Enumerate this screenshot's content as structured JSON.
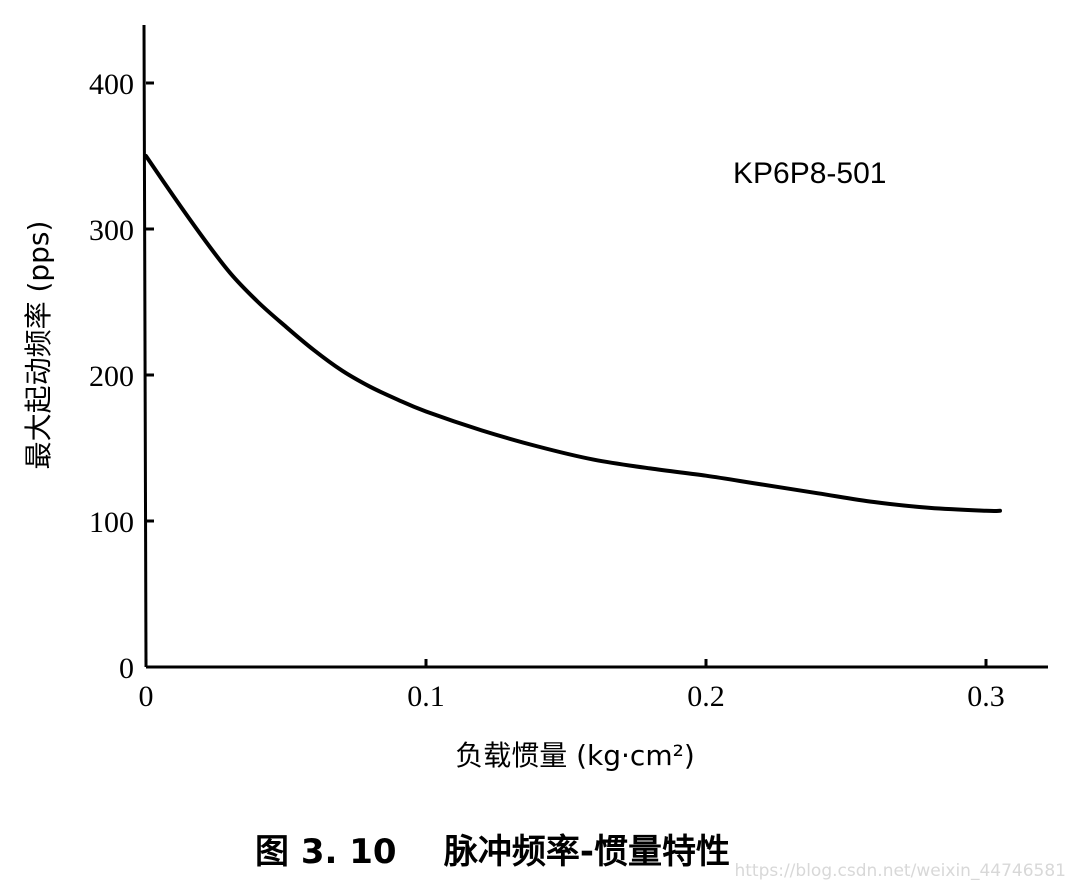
{
  "chart_data": {
    "type": "line",
    "title": "",
    "annotation": "KP6P8-501",
    "xlabel": "负载惯量 (kg·cm²)",
    "ylabel": "最大起动频率 (pps)",
    "xlim": [
      0,
      0.325
    ],
    "ylim": [
      0,
      440
    ],
    "xticks": [
      0,
      0.1,
      0.2,
      0.3
    ],
    "xtick_labels": [
      "0",
      "0.1",
      "0.2",
      "0.3"
    ],
    "yticks": [
      0,
      100,
      200,
      300,
      400
    ],
    "ytick_labels": [
      "0",
      "100",
      "200",
      "300",
      "400"
    ],
    "grid": false,
    "series": [
      {
        "x": [
          0,
          0.01,
          0.02,
          0.03,
          0.04,
          0.05,
          0.06,
          0.07,
          0.08,
          0.09,
          0.1,
          0.12,
          0.14,
          0.16,
          0.18,
          0.2,
          0.22,
          0.24,
          0.26,
          0.28,
          0.3,
          0.305
        ],
        "y": [
          350,
          322,
          295,
          270,
          250,
          233,
          217,
          203,
          192,
          183,
          175,
          162,
          151,
          142,
          136,
          131,
          125,
          119,
          113,
          109,
          107,
          107
        ]
      }
    ]
  },
  "caption": "图 3. 10    脉冲频率-惯量特性",
  "watermark": "https://blog.csdn.net/weixin_44746581"
}
